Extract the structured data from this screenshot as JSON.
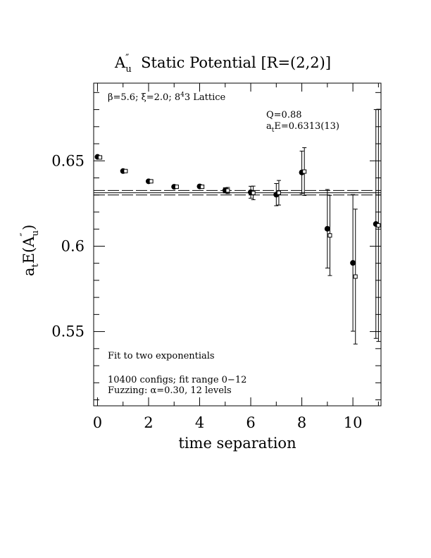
{
  "chart_data": {
    "type": "scatter",
    "title_main": "A",
    "title_sup": "″",
    "title_sub": "u",
    "title_rest": "  Static Potential [R=(2,2)]",
    "xlabel": "time separation",
    "ylabel_main": "a",
    "ylabel_sub": "t",
    "ylabel_mid": "E(A",
    "ylabel_sup": "″",
    "ylabel_sub2": "u",
    "ylabel_end": ")",
    "xlim": [
      -0.15,
      11.1
    ],
    "ylim": [
      0.5065,
      0.6955
    ],
    "x_ticks": [
      {
        "value": 0,
        "label": "0"
      },
      {
        "value": 2,
        "label": "2"
      },
      {
        "value": 4,
        "label": "4"
      },
      {
        "value": 6,
        "label": "6"
      },
      {
        "value": 8,
        "label": "8"
      },
      {
        "value": 10,
        "label": "10"
      }
    ],
    "y_ticks": [
      {
        "value": 0.55,
        "label": "0.55"
      },
      {
        "value": 0.6,
        "label": "0.6"
      },
      {
        "value": 0.65,
        "label": "0.65"
      }
    ],
    "annotations": {
      "lattice": "β=5.6; ξ=2.0; 8⁴×3 Lattice",
      "lattice_beta": "β=5.6; ξ=2.0; 8",
      "lattice_sup": "4",
      "lattice_end": "3 Lattice",
      "q": "Q=0.88",
      "energy_pre": "a",
      "energy_sub": "t",
      "energy_post": "E=0.6313(13)",
      "fit": "Fit to two exponentials",
      "configs": "10400 configs; fit range 0−12",
      "fuzzing": "Fuzzing: α=0.30, 12 levels"
    },
    "fit": {
      "value": 0.6313,
      "error": 0.0013
    },
    "series": [
      {
        "marker": "filled-circle",
        "points": [
          {
            "x": 0,
            "y": 0.6523,
            "err": 0.0005
          },
          {
            "x": 1,
            "y": 0.644,
            "err": 0.0005
          },
          {
            "x": 2,
            "y": 0.638,
            "err": 0.0006
          },
          {
            "x": 3,
            "y": 0.6348,
            "err": 0.0008
          },
          {
            "x": 4,
            "y": 0.635,
            "err": 0.0009
          },
          {
            "x": 5,
            "y": 0.6327,
            "err": 0.0015
          },
          {
            "x": 6,
            "y": 0.6316,
            "err": 0.0035
          },
          {
            "x": 7,
            "y": 0.6302,
            "err": 0.0065
          },
          {
            "x": 8,
            "y": 0.6432,
            "err": 0.0125
          },
          {
            "x": 9,
            "y": 0.6102,
            "err": 0.023
          },
          {
            "x": 10,
            "y": 0.5902,
            "err": 0.04
          },
          {
            "x": 10.9,
            "y": 0.613,
            "err": 0.067
          }
        ]
      },
      {
        "marker": "open-square",
        "points": [
          {
            "x": 0.1,
            "y": 0.652,
            "err": 0.0005
          },
          {
            "x": 1.1,
            "y": 0.644,
            "err": 0.0005
          },
          {
            "x": 2.1,
            "y": 0.638,
            "err": 0.0006
          },
          {
            "x": 3.1,
            "y": 0.6348,
            "err": 0.0008
          },
          {
            "x": 4.1,
            "y": 0.6348,
            "err": 0.001
          },
          {
            "x": 5.1,
            "y": 0.6326,
            "err": 0.0018
          },
          {
            "x": 6.1,
            "y": 0.6312,
            "err": 0.004
          },
          {
            "x": 7.1,
            "y": 0.6313,
            "err": 0.0072
          },
          {
            "x": 8.1,
            "y": 0.6437,
            "err": 0.014
          },
          {
            "x": 9.1,
            "y": 0.6063,
            "err": 0.0235
          },
          {
            "x": 10.1,
            "y": 0.5822,
            "err": 0.0395
          },
          {
            "x": 11.0,
            "y": 0.6122,
            "err": 0.068
          }
        ]
      }
    ]
  }
}
